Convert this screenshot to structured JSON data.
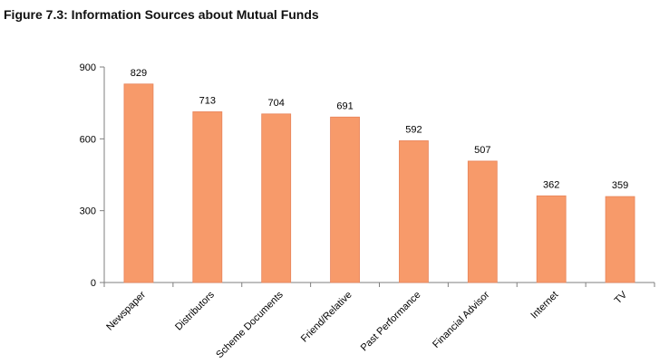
{
  "chart_data": {
    "type": "bar",
    "title": "Figure 7.3: Information Sources about Mutual Funds",
    "xlabel": "",
    "ylabel": "",
    "categories": [
      "Newspaper",
      "Distributors",
      "Scheme Documents",
      "Friend/Relative",
      "Past Performance",
      "Financial Advisor",
      "Internet",
      "TV"
    ],
    "values": [
      829,
      713,
      704,
      691,
      592,
      507,
      362,
      359
    ],
    "ylim": [
      0,
      900
    ],
    "yticks": [
      0,
      300,
      600,
      900
    ],
    "grid": false,
    "legend": "none",
    "bar_color": "#F79A6A",
    "bar_edge_color": "#E8845A"
  }
}
